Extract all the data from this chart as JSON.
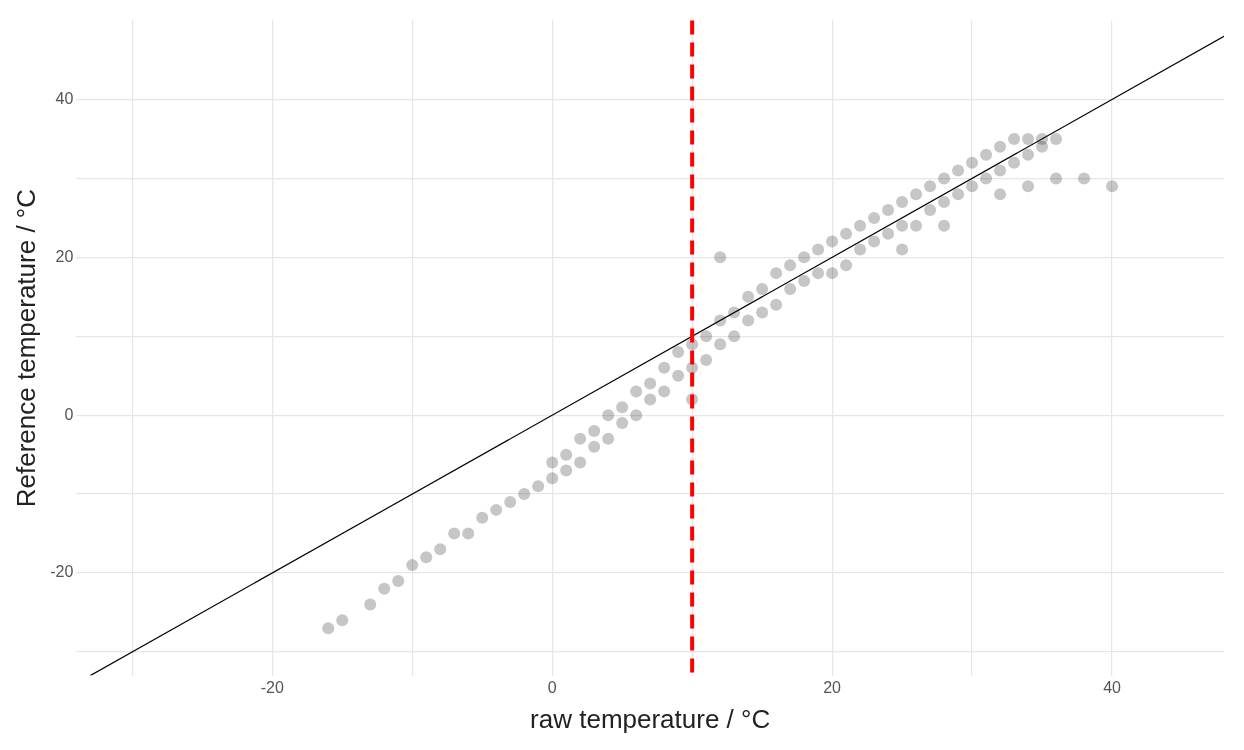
{
  "chart_data": {
    "type": "scatter",
    "xlabel": "raw temperature / °C",
    "ylabel": "Reference temperature / °C",
    "xlim": [
      -34,
      48
    ],
    "ylim": [
      -33,
      50
    ],
    "xticks": [
      {
        "value": -30,
        "label": null
      },
      -20,
      {
        "value": -10,
        "label": null
      },
      0,
      {
        "value": 10,
        "label": null
      },
      20,
      {
        "value": 30,
        "label": null
      },
      40
    ],
    "yticks": [
      {
        "value": -30,
        "label": null
      },
      -20,
      {
        "value": -10,
        "label": null
      },
      0,
      {
        "value": 10,
        "label": null
      },
      20,
      {
        "value": 30,
        "label": null
      },
      40
    ],
    "grid": true,
    "legend": false,
    "series": [
      {
        "color": "#1a1a1a",
        "marker": "circle",
        "x": [
          -16,
          -15,
          -13,
          -12,
          -11,
          -10,
          -9,
          -8,
          -7,
          -6,
          -5,
          -4,
          -3,
          -2,
          -1,
          0,
          0,
          1,
          1,
          2,
          2,
          3,
          3,
          4,
          4,
          5,
          5,
          6,
          6,
          7,
          7,
          8,
          8,
          9,
          9,
          10,
          10,
          11,
          11,
          12,
          12,
          13,
          13,
          14,
          14,
          15,
          15,
          16,
          16,
          17,
          17,
          18,
          18,
          19,
          19,
          20,
          20,
          21,
          21,
          22,
          22,
          23,
          23,
          24,
          24,
          25,
          25,
          26,
          26,
          27,
          27,
          28,
          28,
          29,
          29,
          30,
          30,
          31,
          31,
          32,
          32,
          33,
          33,
          34,
          34,
          35,
          35,
          36,
          32,
          34,
          36,
          38,
          40,
          28,
          25,
          12,
          10
        ],
        "values": [
          -27,
          -26,
          -24,
          -22,
          -21,
          -19,
          -18,
          -17,
          -15,
          -15,
          -13,
          -12,
          -11,
          -10,
          -9,
          -8,
          -6,
          -7,
          -5,
          -6,
          -3,
          -4,
          -2,
          -3,
          0,
          -1,
          1,
          0,
          3,
          2,
          4,
          3,
          6,
          5,
          8,
          6,
          9,
          7,
          10,
          9,
          12,
          10,
          13,
          12,
          15,
          13,
          16,
          14,
          18,
          16,
          19,
          17,
          20,
          18,
          21,
          18,
          22,
          19,
          23,
          21,
          24,
          22,
          25,
          23,
          26,
          24,
          27,
          24,
          28,
          26,
          29,
          27,
          30,
          28,
          31,
          29,
          32,
          30,
          33,
          31,
          34,
          32,
          35,
          33,
          35,
          34,
          35,
          35,
          28,
          29,
          30,
          30,
          29,
          24,
          21,
          20,
          2
        ]
      },
      {
        "type": "line",
        "color": "#000000",
        "x": [
          -33,
          48
        ],
        "values": [
          -33,
          48
        ],
        "marker": "none",
        "line_style": "solid"
      }
    ],
    "ref_lines": [
      {
        "axis": "x",
        "value": 10,
        "color": "#ff0000",
        "line_style": "dashed"
      }
    ]
  }
}
